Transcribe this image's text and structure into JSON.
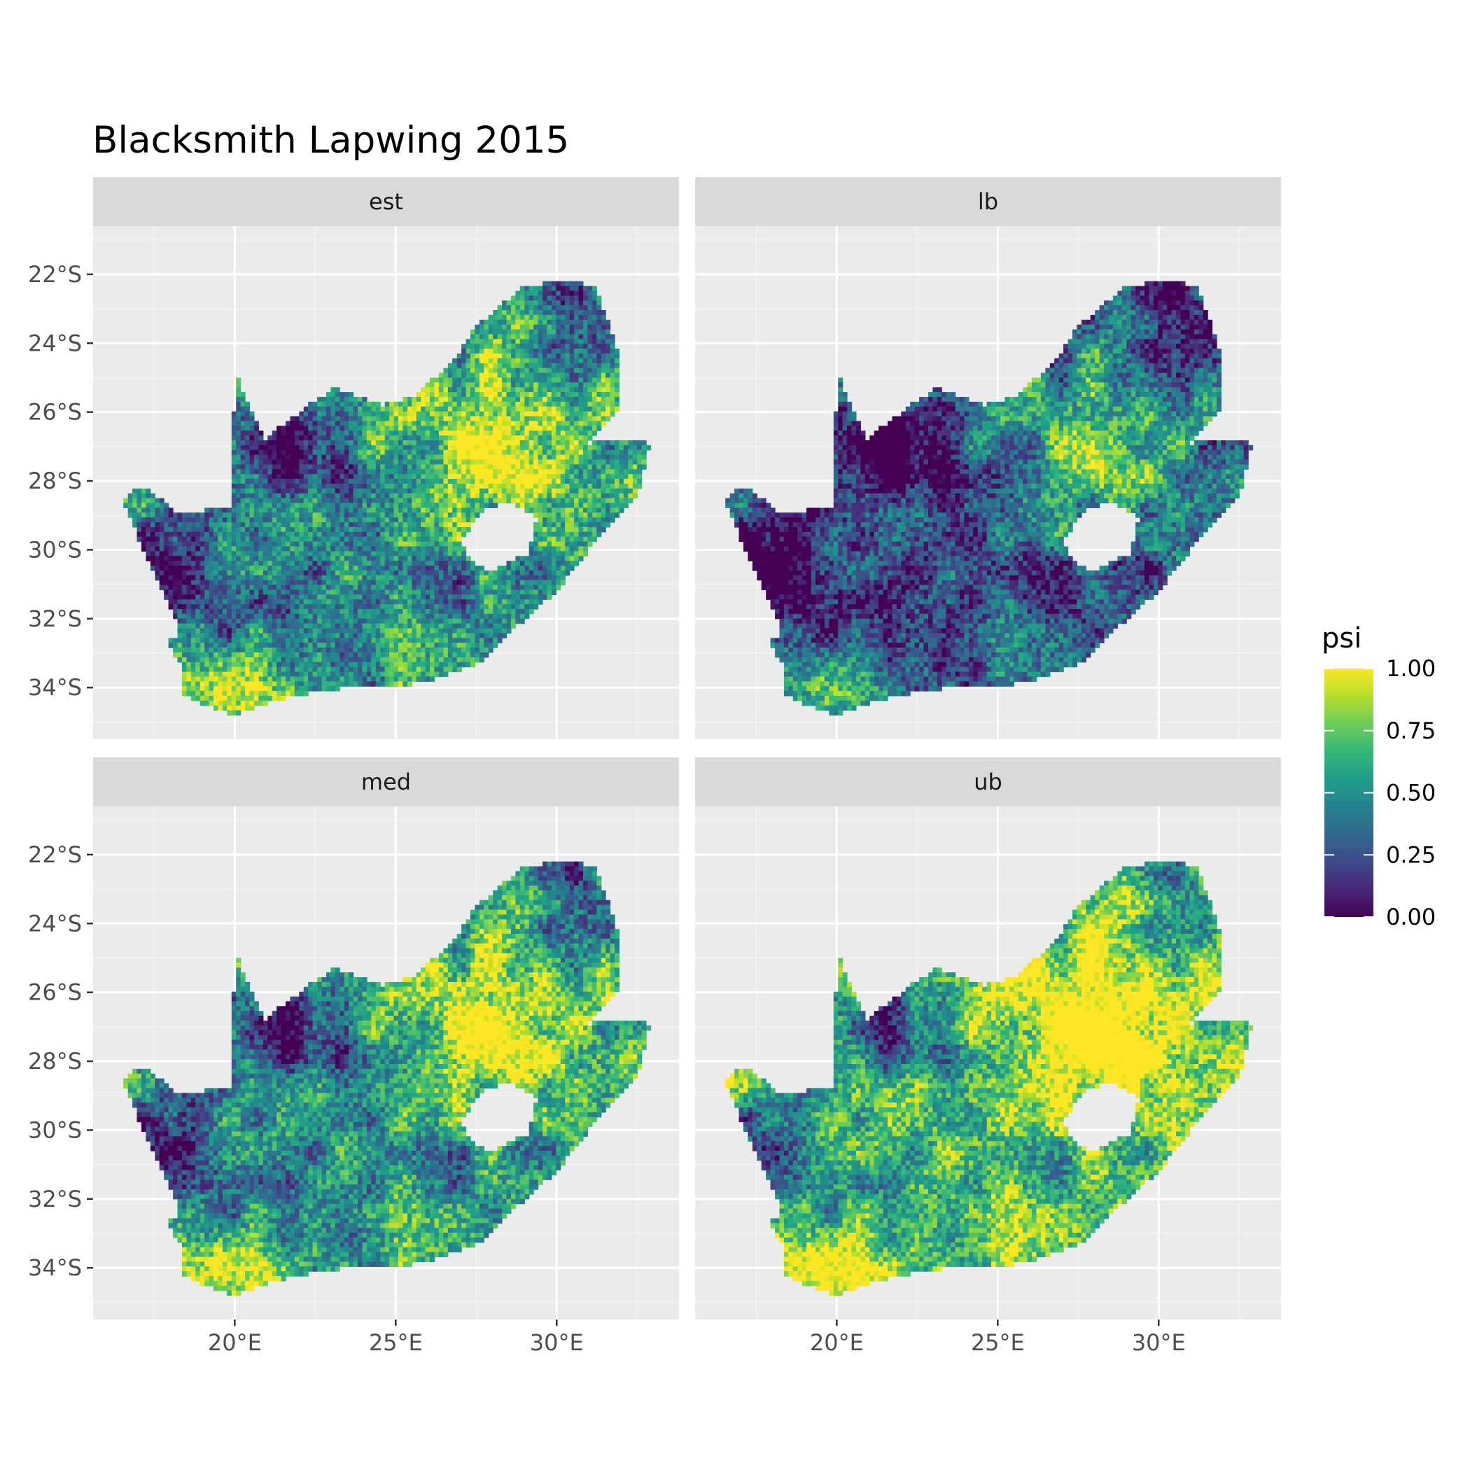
{
  "title": "Blacksmith Lapwing 2015",
  "facets": [
    {
      "label": "est",
      "variant": "est"
    },
    {
      "label": "lb",
      "variant": "lb"
    },
    {
      "label": "med",
      "variant": "med"
    },
    {
      "label": "ub",
      "variant": "ub"
    }
  ],
  "x_axis": {
    "ticks": [
      {
        "value": 20,
        "label": "20°E"
      },
      {
        "value": 25,
        "label": "25°E"
      },
      {
        "value": 30,
        "label": "30°E"
      }
    ],
    "range": [
      15.6,
      33.8
    ]
  },
  "y_axis": {
    "ticks": [
      {
        "value": -22,
        "label": "22°S"
      },
      {
        "value": -24,
        "label": "24°S"
      },
      {
        "value": -26,
        "label": "26°S"
      },
      {
        "value": -28,
        "label": "28°S"
      },
      {
        "value": -30,
        "label": "30°S"
      },
      {
        "value": -32,
        "label": "32°S"
      },
      {
        "value": -34,
        "label": "34°S"
      }
    ],
    "range": [
      -35.5,
      -20.6
    ]
  },
  "legend": {
    "title": "psi",
    "ticks": [
      {
        "value": 1.0,
        "label": "1.00"
      },
      {
        "value": 0.75,
        "label": "0.75"
      },
      {
        "value": 0.5,
        "label": "0.50"
      },
      {
        "value": 0.25,
        "label": "0.25"
      },
      {
        "value": 0.0,
        "label": "0.00"
      }
    ],
    "range": [
      0,
      1
    ]
  },
  "colors": {
    "panel_bg": "#ebebeb",
    "grid": "#ffffff",
    "strip_bg": "#d9d9d9",
    "viridis": [
      "#440154",
      "#482878",
      "#3e4a89",
      "#31688e",
      "#26828e",
      "#1f9e89",
      "#35b779",
      "#6dcd59",
      "#b4de2c",
      "#fde725"
    ]
  },
  "chart_data": {
    "type": "heatmap",
    "title": "Blacksmith Lapwing 2015",
    "xlabel": "",
    "ylabel": "",
    "fill_label": "psi",
    "fill_range": [
      0,
      1
    ],
    "facets": [
      "est",
      "lb",
      "med",
      "ub"
    ],
    "xlim": [
      15.6,
      33.8
    ],
    "ylim": [
      -35.5,
      -20.6
    ],
    "region_outline_lonlat": [
      [
        16.5,
        -28.6
      ],
      [
        17.1,
        -28.1
      ],
      [
        18.2,
        -28.9
      ],
      [
        19.9,
        -28.8
      ],
      [
        20.0,
        -24.8
      ],
      [
        20.9,
        -26.8
      ],
      [
        22.3,
        -25.8
      ],
      [
        23.1,
        -25.3
      ],
      [
        24.6,
        -25.8
      ],
      [
        25.6,
        -25.5
      ],
      [
        26.8,
        -24.5
      ],
      [
        27.5,
        -23.5
      ],
      [
        28.9,
        -22.4
      ],
      [
        29.9,
        -22.2
      ],
      [
        31.2,
        -22.3
      ],
      [
        32.0,
        -24.5
      ],
      [
        31.9,
        -25.9
      ],
      [
        31.0,
        -26.9
      ],
      [
        32.0,
        -26.8
      ],
      [
        32.9,
        -26.9
      ],
      [
        32.5,
        -28.5
      ],
      [
        31.0,
        -30.0
      ],
      [
        30.0,
        -31.2
      ],
      [
        28.8,
        -32.2
      ],
      [
        27.6,
        -33.3
      ],
      [
        26.0,
        -33.8
      ],
      [
        25.0,
        -34.0
      ],
      [
        23.5,
        -34.0
      ],
      [
        22.0,
        -34.2
      ],
      [
        20.5,
        -34.6
      ],
      [
        20.0,
        -34.8
      ],
      [
        18.8,
        -34.4
      ],
      [
        18.4,
        -34.2
      ],
      [
        18.3,
        -33.3
      ],
      [
        17.9,
        -32.7
      ],
      [
        18.3,
        -32.4
      ],
      [
        17.8,
        -31.3
      ],
      [
        16.5,
        -28.6
      ]
    ],
    "hole_outline_lonlat": [
      [
        27.0,
        -29.7
      ],
      [
        27.8,
        -28.8
      ],
      [
        28.6,
        -28.6
      ],
      [
        29.4,
        -29.1
      ],
      [
        29.1,
        -30.1
      ],
      [
        28.0,
        -30.6
      ],
      [
        27.4,
        -30.4
      ],
      [
        27.0,
        -29.7
      ]
    ]
  }
}
